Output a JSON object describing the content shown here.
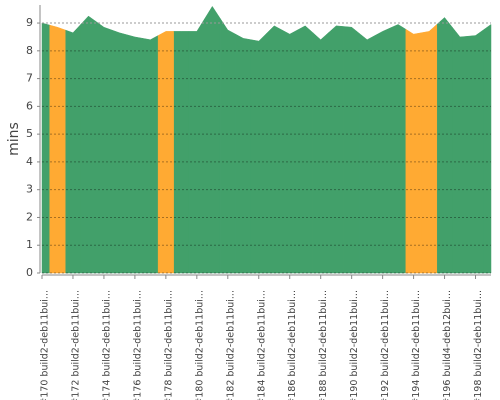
{
  "chart_data": {
    "type": "stacked_area",
    "ylabel": "mins",
    "categories": [
      "#170 build2-deb11bui...",
      null,
      "#172 build2-deb11bui...",
      null,
      "#174 build2-deb11bui...",
      null,
      "#176 build2-deb11bui...",
      null,
      "#178 build2-deb11bui...",
      null,
      "#180 build2-deb11bui...",
      null,
      "#182 build2-deb11bui...",
      null,
      "#184 build2-deb11bui...",
      null,
      "#186 build2-deb11bui...",
      null,
      "#188 build2-deb11bui...",
      null,
      "#190 build2-deb11bui...",
      null,
      "#192 build2-deb11bui...",
      null,
      "#194 build2-deb11bui...",
      null,
      "#196 build4-deb12bui...",
      null,
      "#198 build2-deb11bui...",
      null
    ],
    "series": [
      {
        "color": "#42a06a",
        "values": [
          9.0,
          null,
          8.65,
          9.25,
          8.85,
          8.65,
          8.5,
          8.4,
          null,
          8.7,
          8.7,
          9.6,
          8.75,
          8.45,
          8.35,
          8.9,
          8.6,
          8.9,
          8.4,
          8.9,
          8.85,
          8.4,
          8.7,
          8.95,
          null,
          null,
          9.2,
          8.5,
          8.55,
          8.95
        ]
      },
      {
        "color": "#ffaa33",
        "values": [
          null,
          8.85,
          null,
          null,
          null,
          null,
          null,
          null,
          8.7,
          null,
          null,
          null,
          null,
          null,
          null,
          null,
          null,
          null,
          null,
          null,
          null,
          null,
          null,
          null,
          8.6,
          8.7,
          null,
          null,
          null,
          null
        ]
      }
    ],
    "ylim": [
      0,
      9.65
    ],
    "yticks": [
      0,
      1,
      2,
      3,
      4,
      5,
      6,
      7,
      8,
      9
    ],
    "grid": true
  }
}
